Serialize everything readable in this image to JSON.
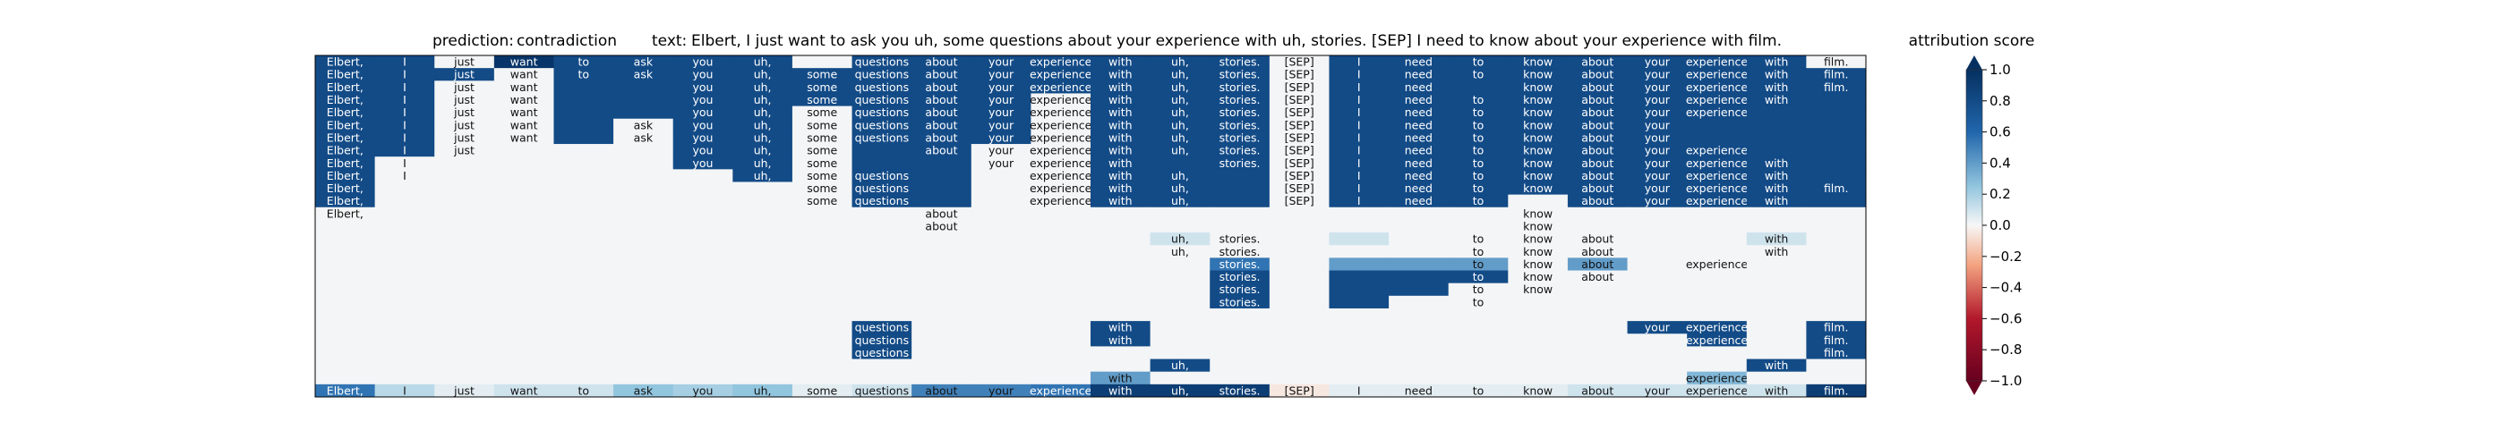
{
  "header": {
    "prediction_label": "prediction:",
    "prediction_value": "contradiction",
    "text_label": "text:",
    "text_value": "Elbert, I just want to ask you uh, some questions about your experience with uh, stories. [SEP] I need to know about your experience with film."
  },
  "colorbar": {
    "title": "attribution score",
    "ticks": [
      "1.0",
      "0.8",
      "0.6",
      "0.4",
      "0.2",
      "0.0",
      "−0.2",
      "−0.4",
      "−0.6",
      "−0.8",
      "−1.0"
    ],
    "colors": {
      "strong_positive": "#053061",
      "positive": "#2166ac",
      "weak_positive": "#92c5de",
      "neutral": "#f7f7f7",
      "weak_negative": "#f4a582",
      "negative": "#b2182b",
      "strong_negative": "#67001f"
    }
  },
  "chart_data": {
    "type": "heatmap",
    "tokens": [
      "Elbert,",
      "I",
      "just",
      "want",
      "to",
      "ask",
      "you",
      "uh,",
      "some",
      "questions",
      "about",
      "your",
      "experience",
      "with",
      "uh,",
      "stories.",
      "[SEP]",
      "I",
      "need",
      "to",
      "know",
      "about",
      "your",
      "experience",
      "with",
      "film."
    ],
    "value_range": [
      -1.0,
      1.0
    ],
    "rows": [
      [
        0.8,
        0.8,
        0.01,
        0.96,
        0.8,
        0.8,
        0.8,
        0.8,
        0.01,
        0.8,
        0.8,
        0.8,
        0.8,
        0.8,
        0.8,
        0.8,
        0.01,
        0.8,
        0.8,
        0.8,
        0.8,
        0.8,
        0.8,
        0.8,
        0.8,
        0.01
      ],
      [
        0.8,
        0.8,
        0.8,
        0.01,
        0.8,
        0.8,
        0.8,
        0.8,
        0.8,
        0.8,
        0.8,
        0.8,
        0.8,
        0.8,
        0.8,
        0.8,
        0.01,
        0.8,
        0.8,
        0.8,
        0.8,
        0.8,
        0.8,
        0.8,
        0.8,
        0.8
      ],
      [
        0.8,
        0.8,
        0.01,
        0.01,
        0.8,
        0.8,
        0.8,
        0.8,
        0.8,
        0.8,
        0.8,
        0.8,
        0.8,
        0.8,
        0.8,
        0.8,
        0.01,
        0.8,
        0.8,
        0.8,
        0.8,
        0.8,
        0.8,
        0.8,
        0.8,
        0.8
      ],
      [
        0.8,
        0.8,
        0.01,
        0.01,
        0.8,
        0.8,
        0.8,
        0.8,
        0.8,
        0.8,
        0.8,
        0.8,
        0.01,
        0.8,
        0.8,
        0.8,
        0.01,
        0.8,
        0.8,
        0.8,
        0.8,
        0.8,
        0.8,
        0.8,
        0.8,
        0.8
      ],
      [
        0.8,
        0.8,
        0.01,
        0.01,
        0.8,
        0.8,
        0.8,
        0.8,
        0.01,
        0.8,
        0.8,
        0.8,
        0.01,
        0.8,
        0.8,
        0.8,
        0.01,
        0.8,
        0.8,
        0.8,
        0.8,
        0.8,
        0.8,
        0.8,
        0.8,
        0.8
      ],
      [
        0.8,
        0.8,
        0.01,
        0.01,
        0.8,
        0.01,
        0.8,
        0.8,
        0.01,
        0.8,
        0.8,
        0.8,
        0.01,
        0.8,
        0.8,
        0.8,
        0.01,
        0.8,
        0.8,
        0.8,
        0.8,
        0.8,
        0.8,
        0.8,
        0.8,
        0.8
      ],
      [
        0.8,
        0.8,
        0.01,
        0.01,
        0.8,
        0.01,
        0.8,
        0.8,
        0.01,
        0.8,
        0.8,
        0.8,
        0.01,
        0.8,
        0.8,
        0.8,
        0.01,
        0.8,
        0.8,
        0.8,
        0.8,
        0.8,
        0.8,
        0.8,
        0.8,
        0.8
      ],
      [
        0.8,
        0.8,
        0.01,
        0.01,
        0.01,
        0.01,
        0.8,
        0.8,
        0.01,
        0.8,
        0.8,
        0.01,
        0.01,
        0.8,
        0.8,
        0.8,
        0.01,
        0.8,
        0.8,
        0.8,
        0.8,
        0.8,
        0.8,
        0.8,
        0.8,
        0.8
      ],
      [
        0.8,
        0.01,
        0.01,
        0.01,
        0.01,
        0.01,
        0.8,
        0.8,
        0.01,
        0.8,
        0.8,
        0.01,
        0.01,
        0.8,
        0.8,
        0.8,
        0.01,
        0.8,
        0.8,
        0.8,
        0.8,
        0.8,
        0.8,
        0.8,
        0.8,
        0.8
      ],
      [
        0.8,
        0.01,
        0.01,
        0.01,
        0.01,
        0.01,
        0.01,
        0.8,
        0.01,
        0.8,
        0.8,
        0.01,
        0.01,
        0.8,
        0.8,
        0.8,
        0.01,
        0.8,
        0.8,
        0.8,
        0.8,
        0.8,
        0.8,
        0.8,
        0.8,
        0.8
      ],
      [
        0.8,
        0.01,
        0.01,
        0.01,
        0.01,
        0.01,
        0.01,
        0.01,
        0.01,
        0.8,
        0.8,
        0.01,
        0.01,
        0.8,
        0.8,
        0.8,
        0.01,
        0.8,
        0.8,
        0.8,
        0.8,
        0.8,
        0.8,
        0.8,
        0.8,
        0.8
      ],
      [
        0.8,
        0.01,
        0.01,
        0.01,
        0.01,
        0.01,
        0.01,
        0.01,
        0.01,
        0.8,
        0.8,
        0.01,
        0.01,
        0.8,
        0.8,
        0.8,
        0.01,
        0.8,
        0.8,
        0.8,
        0.01,
        0.8,
        0.8,
        0.8,
        0.8,
        0.8
      ],
      [
        0.01,
        0.01,
        0.01,
        0.01,
        0.01,
        0.01,
        0.01,
        0.01,
        0.01,
        0.01,
        0.01,
        0.01,
        0.01,
        0.01,
        0.01,
        0.01,
        0.01,
        0.01,
        0.01,
        0.01,
        0.01,
        0.01,
        0.01,
        0.01,
        0.01,
        0.01
      ],
      [
        0.01,
        0.01,
        0.01,
        0.01,
        0.01,
        0.01,
        0.01,
        0.01,
        0.01,
        0.01,
        0.01,
        0.01,
        0.01,
        0.01,
        0.01,
        0.01,
        0.01,
        0.01,
        0.01,
        0.01,
        0.01,
        0.01,
        0.01,
        0.01,
        0.01,
        0.01
      ],
      [
        0.01,
        0.01,
        0.01,
        0.01,
        0.01,
        0.01,
        0.01,
        0.01,
        0.01,
        0.01,
        0.01,
        0.01,
        0.01,
        0.01,
        0.1,
        0.01,
        0.01,
        0.1,
        0.01,
        0.01,
        0.01,
        0.01,
        0.01,
        0.01,
        0.1,
        0.01
      ],
      [
        0.01,
        0.01,
        0.01,
        0.01,
        0.01,
        0.01,
        0.01,
        0.01,
        0.01,
        0.01,
        0.01,
        0.01,
        0.01,
        0.01,
        0.01,
        0.01,
        0.01,
        0.01,
        0.01,
        0.01,
        0.01,
        0.01,
        0.01,
        0.01,
        0.01,
        0.01
      ],
      [
        0.01,
        0.01,
        0.01,
        0.01,
        0.01,
        0.01,
        0.01,
        0.01,
        0.01,
        0.01,
        0.01,
        0.01,
        0.01,
        0.01,
        0.01,
        0.55,
        0.01,
        0.4,
        0.4,
        0.4,
        0.01,
        0.4,
        0.01,
        0.01,
        0.01,
        0.01
      ],
      [
        0.01,
        0.01,
        0.01,
        0.01,
        0.01,
        0.01,
        0.01,
        0.01,
        0.01,
        0.01,
        0.01,
        0.01,
        0.01,
        0.01,
        0.01,
        0.8,
        0.01,
        0.8,
        0.8,
        0.8,
        0.01,
        0.01,
        0.01,
        0.01,
        0.01,
        0.01
      ],
      [
        0.01,
        0.01,
        0.01,
        0.01,
        0.01,
        0.01,
        0.01,
        0.01,
        0.01,
        0.01,
        0.01,
        0.01,
        0.01,
        0.01,
        0.01,
        0.8,
        0.01,
        0.8,
        0.8,
        0.01,
        0.01,
        0.01,
        0.01,
        0.01,
        0.01,
        0.01
      ],
      [
        0.01,
        0.01,
        0.01,
        0.01,
        0.01,
        0.01,
        0.01,
        0.01,
        0.01,
        0.01,
        0.01,
        0.01,
        0.01,
        0.01,
        0.01,
        0.8,
        0.01,
        0.8,
        0.01,
        0.01,
        0.01,
        0.01,
        0.01,
        0.01,
        0.01,
        0.01
      ],
      [
        0.01,
        0.01,
        0.01,
        0.01,
        0.01,
        0.01,
        0.01,
        0.01,
        0.01,
        0.01,
        0.01,
        0.01,
        0.01,
        0.01,
        0.01,
        0.01,
        0.01,
        0.01,
        0.01,
        0.01,
        0.01,
        0.01,
        0.01,
        0.01,
        0.01,
        0.01
      ],
      [
        0.01,
        0.01,
        0.01,
        0.01,
        0.01,
        0.01,
        0.01,
        0.01,
        0.01,
        0.8,
        0.01,
        0.01,
        0.01,
        0.8,
        0.01,
        0.01,
        0.01,
        0.01,
        0.01,
        0.01,
        0.01,
        0.01,
        0.8,
        0.8,
        0.01,
        0.8
      ],
      [
        0.01,
        0.01,
        0.01,
        0.01,
        0.01,
        0.01,
        0.01,
        0.01,
        0.01,
        0.8,
        0.01,
        0.01,
        0.01,
        0.8,
        0.01,
        0.01,
        0.01,
        0.01,
        0.01,
        0.01,
        0.01,
        0.01,
        0.01,
        0.8,
        0.01,
        0.8
      ],
      [
        0.01,
        0.01,
        0.01,
        0.01,
        0.01,
        0.01,
        0.01,
        0.01,
        0.01,
        0.8,
        0.01,
        0.01,
        0.01,
        0.01,
        0.01,
        0.01,
        0.01,
        0.01,
        0.01,
        0.01,
        0.01,
        0.01,
        0.01,
        0.01,
        0.01,
        0.8
      ],
      [
        0.01,
        0.01,
        0.01,
        0.01,
        0.01,
        0.01,
        0.01,
        0.01,
        0.01,
        0.01,
        0.01,
        0.01,
        0.01,
        0.01,
        0.8,
        0.01,
        0.01,
        0.01,
        0.01,
        0.01,
        0.01,
        0.01,
        0.01,
        0.01,
        0.8,
        0.01
      ],
      [
        0.01,
        0.01,
        0.01,
        0.01,
        0.01,
        0.01,
        0.01,
        0.01,
        0.01,
        0.01,
        0.01,
        0.01,
        0.01,
        0.4,
        0.01,
        0.01,
        0.01,
        0.01,
        0.01,
        0.01,
        0.01,
        0.01,
        0.01,
        0.3,
        0.01,
        0.01
      ],
      [
        0.55,
        0.15,
        0.05,
        0.1,
        0.1,
        0.25,
        0.2,
        0.25,
        0.05,
        0.1,
        0.5,
        0.5,
        0.55,
        0.9,
        0.9,
        0.9,
        -0.05,
        0.05,
        0.05,
        0.05,
        0.05,
        0.1,
        0.1,
        0.1,
        0.1,
        0.9
      ]
    ],
    "labels": [
      "1111111101111111111111111101010",
      "1111111111111111111111111111",
      "11110011111111111110111111111",
      "1111001111111111111111111",
      "111100111111111111111111",
      "11110111111111111111111",
      "11110111111111111111111",
      "111000111011111111111111",
      "1100001110011101111111111",
      "1100000111001110111111111",
      "10000000110011101111111111",
      "1000000011001110111101111",
      "10000000001000000000100000",
      "00000000001000000000100000",
      "00000000000000110001110010",
      "00000000000000110001110010",
      "00000000000000010001110100",
      "00000000000000010001110000",
      "00000000000000010001100000",
      "00000000000000010001000000",
      "00000000000000000000000000",
      "00000000010001000000001101",
      "00000000010001000000000101",
      "00000000010000000000000001",
      "00000000000000100000000010",
      "00000000000001000000000100",
      "11111111111111111111111111"
    ]
  }
}
